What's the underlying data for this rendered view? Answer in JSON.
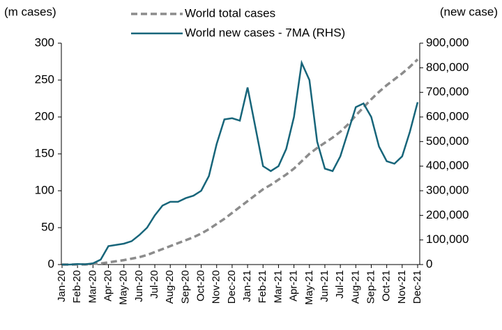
{
  "chart_data": {
    "type": "line",
    "y_axis_label": "(m cases)",
    "y2_axis_label": "(new case)",
    "categories": [
      "Jan-20",
      null,
      "Feb-20",
      null,
      "Mar-20",
      null,
      "Apr-20",
      null,
      "May-20",
      null,
      "Jun-20",
      null,
      "Jul-20",
      null,
      "Aug-20",
      null,
      "Sep-20",
      null,
      "Oct-20",
      null,
      "Nov-20",
      null,
      "Dec-20",
      null,
      "Jan-21",
      null,
      "Feb-21",
      null,
      "Mar-21",
      null,
      "Apr-21",
      null,
      "May-21",
      null,
      "Jun-21",
      null,
      "Jul-21",
      null,
      "Aug-21",
      null,
      "Sep-21",
      null,
      "Oct-21",
      null,
      "Nov-21",
      null,
      "Dec-21"
    ],
    "series": [
      {
        "name": "World total cases",
        "color": "#8c8c8c",
        "dashed": true,
        "values": [
          0,
          0,
          0.1,
          0.1,
          1,
          1.5,
          3,
          4.5,
          6,
          8,
          10,
          13,
          17,
          21,
          25,
          29,
          33,
          37,
          42,
          48,
          55,
          62,
          70,
          78,
          86,
          94,
          102,
          108,
          115,
          122,
          130,
          140,
          150,
          158,
          165,
          172,
          180,
          190,
          202,
          213,
          224,
          234,
          243,
          251,
          259,
          268,
          278
        ]
      },
      {
        "name": "World new cases - 7MA (RHS)",
        "color": "#17657a",
        "dashed": false,
        "axis": "y2",
        "values": [
          0,
          0,
          2000,
          1000,
          5000,
          20000,
          75000,
          80000,
          85000,
          95000,
          120000,
          150000,
          200000,
          240000,
          255000,
          255000,
          270000,
          280000,
          300000,
          360000,
          490000,
          590000,
          595000,
          585000,
          720000,
          560000,
          400000,
          380000,
          400000,
          470000,
          600000,
          820000,
          750000,
          500000,
          390000,
          380000,
          440000,
          540000,
          640000,
          655000,
          600000,
          480000,
          420000,
          410000,
          440000,
          540000,
          660000
        ]
      }
    ],
    "ylim": [
      0,
      300
    ],
    "yticks": [
      0,
      50,
      100,
      150,
      200,
      250,
      300
    ],
    "y2lim": [
      0,
      900000
    ],
    "y2ticks": [
      0,
      {
        "value": 100000,
        "label": "100,000"
      },
      {
        "value": 200000,
        "label": "200,000"
      },
      {
        "value": 300000,
        "label": "300,000"
      },
      {
        "value": 400000,
        "label": "400,000"
      },
      {
        "value": 500000,
        "label": "500,000"
      },
      {
        "value": 600000,
        "label": "600,000"
      },
      {
        "value": 700000,
        "label": "700,000"
      },
      {
        "value": 800000,
        "label": "800,000"
      },
      {
        "value": 900000,
        "label": "900,000"
      }
    ],
    "grid": false,
    "legend": "top"
  }
}
